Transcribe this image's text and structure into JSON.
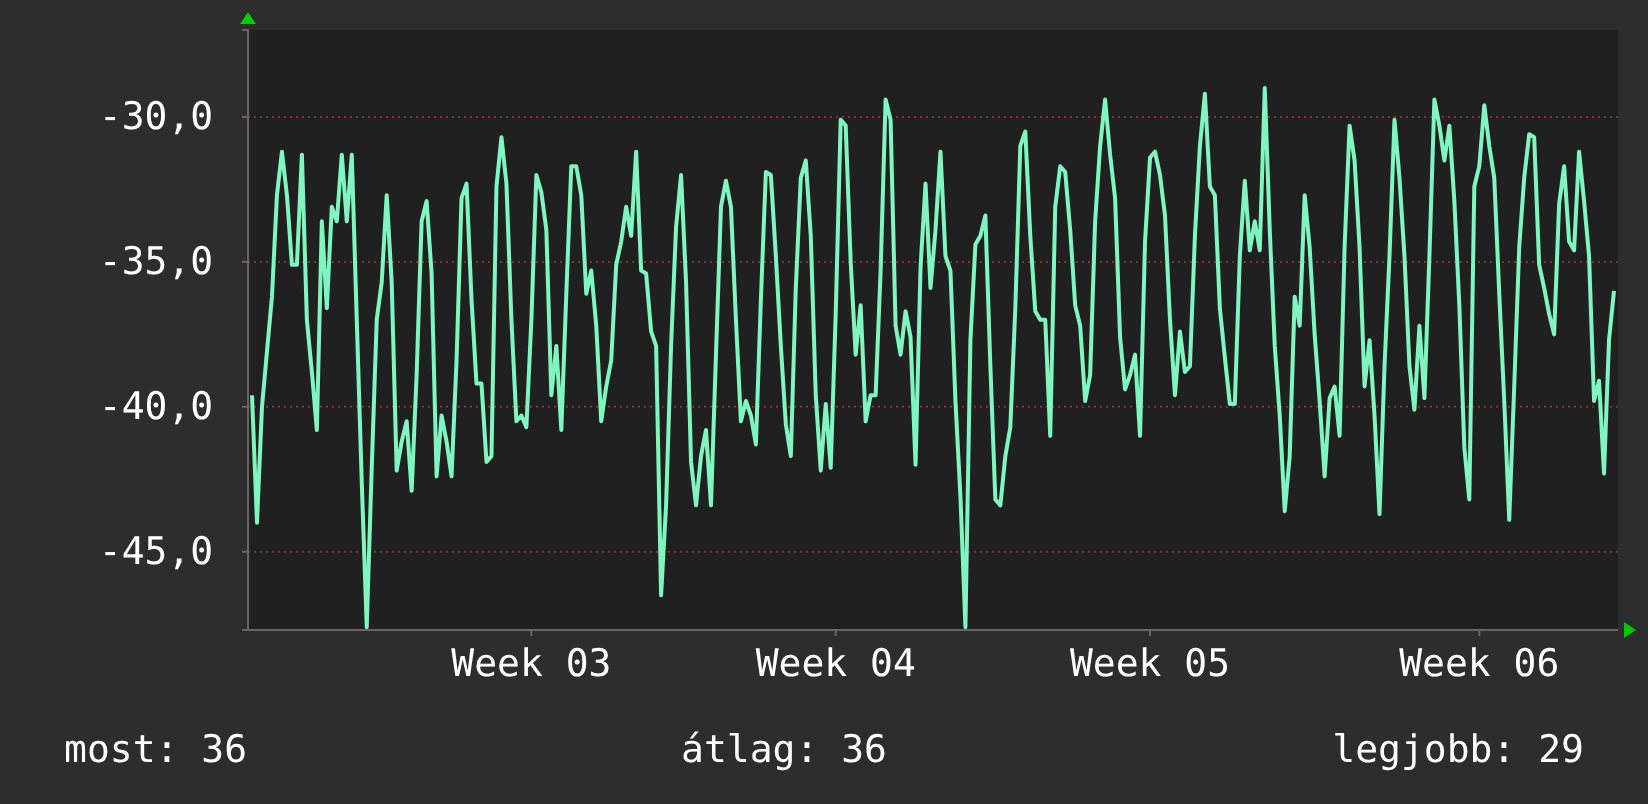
{
  "chart_data": {
    "type": "line",
    "ylim": [
      -47.7,
      -27.0
    ],
    "categories": [
      null,
      null,
      null,
      null,
      null,
      null,
      null,
      null,
      null,
      null,
      null,
      null,
      null,
      null,
      null,
      null,
      null,
      null,
      null,
      null,
      null,
      null,
      null,
      null,
      null,
      null,
      null,
      null,
      null,
      null,
      null,
      null,
      null,
      null,
      null,
      null,
      null,
      null,
      null,
      null,
      null,
      null,
      null,
      null,
      null,
      null,
      null,
      null,
      null,
      null,
      null,
      null,
      null,
      null,
      null,
      null,
      "Week 03",
      null,
      null,
      null,
      null,
      null,
      null,
      null,
      null,
      null,
      null,
      null,
      null,
      null,
      null,
      null,
      null,
      null,
      null,
      null,
      null,
      null,
      null,
      null,
      null,
      null,
      null,
      null,
      null,
      null,
      null,
      null,
      null,
      null,
      null,
      null,
      null,
      null,
      null,
      null,
      null,
      null,
      null,
      null,
      null,
      null,
      null,
      null,
      null,
      null,
      null,
      null,
      null,
      null,
      null,
      null,
      null,
      null,
      null,
      null,
      null,
      "Week 04",
      null,
      null,
      null,
      null,
      null,
      null,
      null,
      null,
      null,
      null,
      null,
      null,
      null,
      null,
      null,
      null,
      null,
      null,
      null,
      null,
      null,
      null,
      null,
      null,
      null,
      null,
      null,
      null,
      null,
      null,
      null,
      null,
      null,
      null,
      null,
      null,
      null,
      null,
      null,
      null,
      null,
      null,
      null,
      null,
      null,
      null,
      null,
      null,
      null,
      null,
      null,
      null,
      null,
      null,
      null,
      null,
      null,
      null,
      null,
      null,
      null,
      null,
      "Week 05",
      null,
      null,
      null,
      null,
      null,
      null,
      null,
      null,
      null,
      null,
      null,
      null,
      null,
      null,
      null,
      null,
      null,
      null,
      null,
      null,
      null,
      null,
      null,
      null,
      null,
      null,
      null,
      null,
      null,
      null,
      null,
      null,
      null,
      null,
      null,
      null,
      null,
      null,
      null,
      null,
      null,
      null,
      null,
      null,
      null,
      null,
      null,
      null,
      null,
      null,
      null,
      null,
      null,
      null,
      null,
      null,
      null,
      null,
      null,
      null,
      null,
      null,
      null,
      null,
      null,
      "Week 06",
      null,
      null,
      null,
      null,
      null,
      null,
      null,
      null,
      null,
      null,
      null,
      null,
      null,
      null,
      null,
      null,
      null,
      null,
      null,
      null,
      null,
      null,
      null,
      null,
      null,
      null,
      null
    ],
    "yticks": [
      {
        "value": -45,
        "label": "-45,0"
      },
      {
        "value": -40,
        "label": "-40,0"
      },
      {
        "value": -35,
        "label": "-35,0"
      },
      {
        "value": -30,
        "label": "-30,0"
      }
    ],
    "grid": "y",
    "marker": "none",
    "line_style": "solid",
    "annotations": [
      "most: 36",
      "átlag: 36",
      "legjobb: 29"
    ],
    "series": [
      {
        "color": "#7ff5c0",
        "values": [
          -39.6,
          -44.0,
          -40.0,
          -38.1,
          -36.2,
          -32.7,
          -31.2,
          -32.7,
          -35.1,
          -35.1,
          -31.3,
          -37.0,
          -38.8,
          -40.8,
          -33.6,
          -36.6,
          -33.1,
          -33.6,
          -31.3,
          -33.6,
          -31.3,
          -37.0,
          -42.6,
          -47.6,
          -42.1,
          -37.0,
          -35.7,
          -32.7,
          -35.7,
          -42.2,
          -41.2,
          -40.5,
          -42.9,
          -38.9,
          -33.6,
          -32.9,
          -35.4,
          -42.4,
          -40.3,
          -41.2,
          -42.4,
          -38.4,
          -32.8,
          -32.3,
          -36.3,
          -39.2,
          -39.2,
          -41.9,
          -41.7,
          -32.4,
          -30.7,
          -32.3,
          -37.0,
          -40.5,
          -40.3,
          -40.7,
          -37.0,
          -32.0,
          -32.6,
          -33.9,
          -39.6,
          -37.9,
          -40.8,
          -36.1,
          -31.7,
          -31.7,
          -32.7,
          -36.1,
          -35.3,
          -37.2,
          -40.5,
          -39.3,
          -38.4,
          -35.1,
          -34.3,
          -33.1,
          -34.1,
          -31.2,
          -35.3,
          -35.4,
          -37.4,
          -37.9,
          -46.5,
          -43.4,
          -37.9,
          -33.8,
          -32.0,
          -35.7,
          -41.9,
          -43.4,
          -41.7,
          -40.8,
          -43.4,
          -38.2,
          -33.1,
          -32.2,
          -33.1,
          -37.0,
          -40.5,
          -39.8,
          -40.3,
          -41.3,
          -36.3,
          -31.9,
          -32.0,
          -34.8,
          -37.9,
          -40.6,
          -41.7,
          -35.9,
          -32.1,
          -31.5,
          -34.1,
          -39.6,
          -42.2,
          -39.9,
          -42.1,
          -36.8,
          -30.1,
          -30.3,
          -35.0,
          -38.2,
          -36.5,
          -40.5,
          -39.6,
          -39.6,
          -35.3,
          -29.4,
          -30.1,
          -37.2,
          -38.2,
          -36.7,
          -37.6,
          -42.0,
          -35.2,
          -32.3,
          -35.9,
          -33.9,
          -31.2,
          -34.8,
          -35.3,
          -39.8,
          -43.1,
          -47.6,
          -37.7,
          -34.4,
          -34.1,
          -33.4,
          -38.6,
          -43.2,
          -43.4,
          -41.7,
          -40.7,
          -36.6,
          -31.0,
          -30.5,
          -34.1,
          -36.7,
          -37.0,
          -37.0,
          -41.0,
          -33.1,
          -31.7,
          -31.9,
          -33.9,
          -36.5,
          -37.2,
          -39.8,
          -38.9,
          -33.6,
          -31.0,
          -29.4,
          -31.3,
          -32.8,
          -37.6,
          -39.4,
          -38.9,
          -38.2,
          -41.0,
          -34.3,
          -31.4,
          -31.2,
          -32.0,
          -33.4,
          -37.0,
          -39.6,
          -37.4,
          -38.8,
          -38.6,
          -34.1,
          -31.0,
          -29.2,
          -32.4,
          -32.7,
          -36.6,
          -38.3,
          -39.9,
          -39.9,
          -34.8,
          -32.2,
          -34.6,
          -33.6,
          -34.6,
          -29.0,
          -33.9,
          -37.9,
          -40.3,
          -43.6,
          -41.7,
          -36.2,
          -37.2,
          -32.7,
          -34.5,
          -37.5,
          -39.8,
          -42.4,
          -39.7,
          -39.3,
          -41.0,
          -34.5,
          -30.3,
          -31.5,
          -34.5,
          -39.3,
          -37.7,
          -40.3,
          -43.7,
          -38.6,
          -34.8,
          -30.1,
          -32.1,
          -34.8,
          -38.6,
          -40.1,
          -37.2,
          -39.7,
          -34.8,
          -29.4,
          -30.3,
          -31.5,
          -30.3,
          -32.9,
          -36.5,
          -41.4,
          -43.2,
          -32.4,
          -31.7,
          -29.6,
          -31.0,
          -32.1,
          -36.1,
          -39.8,
          -43.9,
          -39.3,
          -34.5,
          -32.1,
          -30.6,
          -30.7,
          -35.1,
          -35.9,
          -36.8,
          -37.5,
          -33.0,
          -31.7,
          -34.3,
          -34.6,
          -31.2,
          -32.9,
          -34.8,
          -39.8,
          -39.1,
          -42.3,
          -37.7,
          -36.0
        ]
      }
    ]
  }
}
